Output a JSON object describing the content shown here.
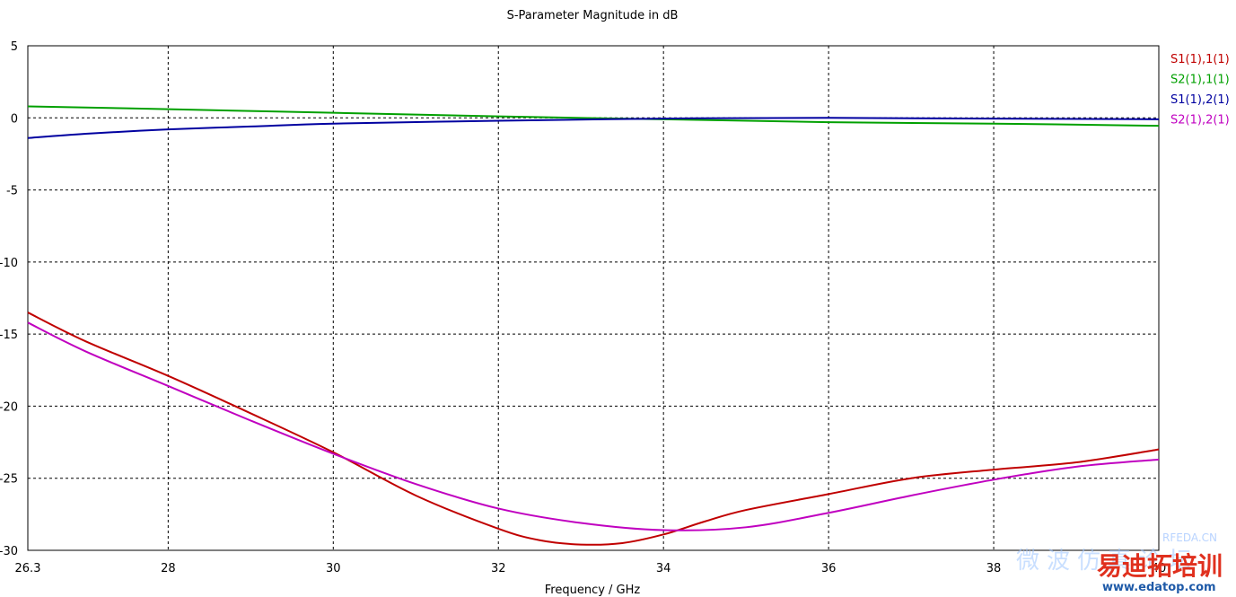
{
  "chart_data": {
    "type": "line",
    "title": "S-Parameter Magnitude in dB",
    "xlabel": "Frequency / GHz",
    "ylabel": "",
    "xlim": [
      26.3,
      40
    ],
    "ylim": [
      -30,
      5
    ],
    "xticks": [
      26.3,
      28,
      30,
      32,
      34,
      36,
      38,
      40
    ],
    "yticks": [
      5,
      0,
      -5,
      -10,
      -15,
      -20,
      -25,
      -30
    ],
    "grid": true,
    "legend_position": "right",
    "series": [
      {
        "name": "S1(1),1(1)",
        "color": "#c00000",
        "x": [
          26.3,
          27,
          28,
          29,
          30,
          31,
          32,
          32.5,
          33,
          33.5,
          34,
          34.5,
          35,
          36,
          37,
          38,
          39,
          40
        ],
        "y": [
          -13.5,
          -15.5,
          -17.9,
          -20.5,
          -23.2,
          -26.2,
          -28.5,
          -29.3,
          -29.6,
          -29.5,
          -28.9,
          -28.0,
          -27.2,
          -26.1,
          -25.0,
          -24.4,
          -23.9,
          -23.0
        ]
      },
      {
        "name": "S2(1),1(1)",
        "color": "#00a000",
        "x": [
          26.3,
          28,
          30,
          32,
          34,
          36,
          38,
          40
        ],
        "y": [
          0.8,
          0.6,
          0.35,
          0.1,
          -0.1,
          -0.3,
          -0.4,
          -0.55
        ]
      },
      {
        "name": "S1(1),2(1)",
        "color": "#0000a0",
        "x": [
          26.3,
          27,
          28,
          29,
          30,
          32,
          34,
          36,
          38,
          40
        ],
        "y": [
          -1.4,
          -1.1,
          -0.8,
          -0.6,
          -0.4,
          -0.2,
          -0.05,
          0.0,
          -0.05,
          -0.1
        ]
      },
      {
        "name": "S2(1),2(1)",
        "color": "#c000c0",
        "x": [
          26.3,
          27,
          28,
          29,
          30,
          31,
          32,
          33,
          34,
          35,
          36,
          37,
          38,
          39,
          40
        ],
        "y": [
          -14.2,
          -16.2,
          -18.6,
          -21.0,
          -23.3,
          -25.4,
          -27.1,
          -28.1,
          -28.6,
          -28.4,
          -27.4,
          -26.2,
          -25.1,
          -24.2,
          -23.7
        ]
      }
    ]
  },
  "watermark": {
    "brand": "RFEDA.CN",
    "text_cn": "微波仿真论坛",
    "text_cn_large": "易迪拓培训",
    "url": "www.edatop.com"
  }
}
